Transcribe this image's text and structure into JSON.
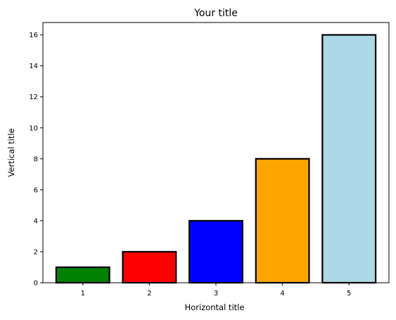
{
  "chart_data": {
    "type": "bar",
    "title": "Your title",
    "xlabel": "Horizontal title",
    "ylabel": "Vertical title",
    "categories": [
      "1",
      "2",
      "3",
      "4",
      "5"
    ],
    "values": [
      1,
      2,
      4,
      8,
      16
    ],
    "colors": [
      "#008000",
      "#ff0000",
      "#0000ff",
      "#ffa500",
      "#add8e6"
    ],
    "edge_color": "#000000",
    "ylim": [
      0,
      16.8
    ],
    "yticks": [
      0,
      2,
      4,
      6,
      8,
      10,
      12,
      14,
      16
    ],
    "grid": false,
    "legend": "none"
  }
}
